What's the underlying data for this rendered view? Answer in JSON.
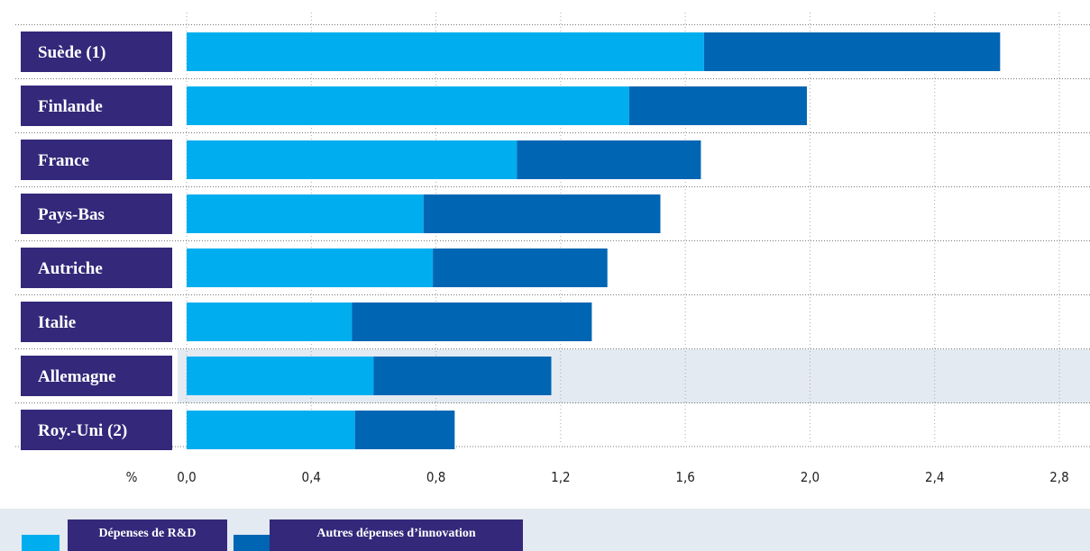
{
  "chart_data": {
    "type": "bar",
    "orientation": "horizontal",
    "stacked": true,
    "categories": [
      "Suède (1)",
      "Finlande",
      "France",
      "Pays-Bas",
      "Autriche",
      "Italie",
      "Allemagne",
      "Roy.-Uni (2)"
    ],
    "series": [
      {
        "name": "Dépenses de R&D",
        "color": "#00aeef",
        "values": [
          1.66,
          1.42,
          1.06,
          0.76,
          0.79,
          0.53,
          0.6,
          0.54
        ]
      },
      {
        "name": "Autres dépenses d’innovation",
        "color": "#0066b3",
        "values": [
          0.95,
          0.57,
          0.59,
          0.76,
          0.56,
          0.77,
          0.57,
          0.32
        ]
      }
    ],
    "xaxis_unit": "%",
    "xticks": [
      "0,0",
      "0,4",
      "0,8",
      "1,2",
      "1,6",
      "2,0",
      "2,4",
      "2,8"
    ],
    "xlim": [
      0,
      2.8
    ],
    "grid": true,
    "highlight_category": "Allemagne",
    "legend_position": "bottom"
  },
  "colors": {
    "label_bg": "#33287a",
    "highlight_bg": "#e3eaf2"
  }
}
